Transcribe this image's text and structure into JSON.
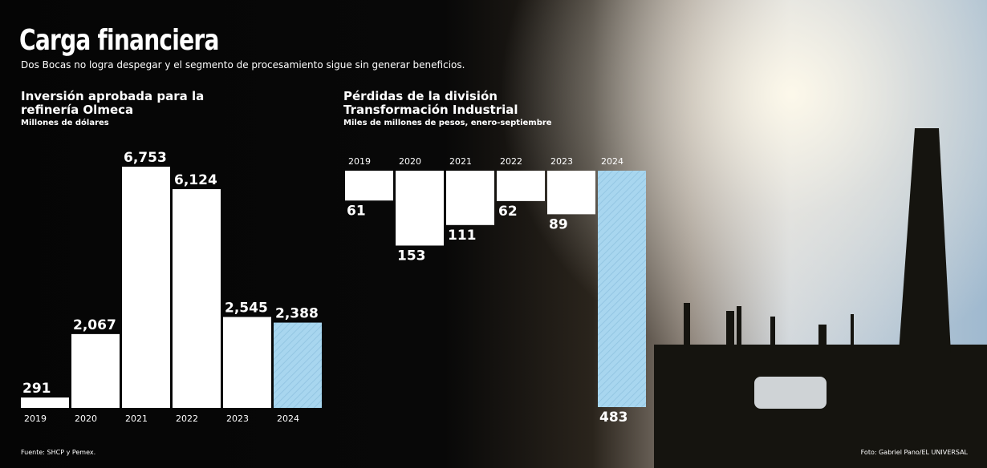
{
  "title": "Carga financiera",
  "subtitle": "Dos Bocas no logra despegar y el segmento de procesamiento sigue sin generar beneficios.",
  "source": "Fuente: SHCP y Pemex.",
  "credit": "Foto: Gabriel Pano/EL UNIVERSAL",
  "chart_data": [
    {
      "type": "bar",
      "title": "Inversión aprobada para la refinería Olmeca",
      "subtitle": "Millones de dólares",
      "categories": [
        "2019",
        "2020",
        "2021",
        "2022",
        "2023",
        "2024"
      ],
      "values": [
        291,
        2067,
        6753,
        6124,
        2545,
        2388
      ],
      "value_labels": [
        "291",
        "2,067",
        "6,753",
        "6,124",
        "2,545",
        "2,388"
      ],
      "colors": [
        "#ffffff",
        "#ffffff",
        "#ffffff",
        "#ffffff",
        "#ffffff",
        "#a8d6ef"
      ],
      "bar_direction": "up"
    },
    {
      "type": "bar",
      "title": "Pérdidas de la división Transformación Industrial",
      "subtitle": "Miles de millones de pesos, enero-septiembre",
      "categories": [
        "2019",
        "2020",
        "2021",
        "2022",
        "2023",
        "2024"
      ],
      "values": [
        61,
        153,
        111,
        62,
        89,
        483
      ],
      "colors": [
        "#ffffff",
        "#ffffff",
        "#ffffff",
        "#ffffff",
        "#ffffff",
        "#a8d6ef"
      ],
      "bar_direction": "down"
    }
  ]
}
